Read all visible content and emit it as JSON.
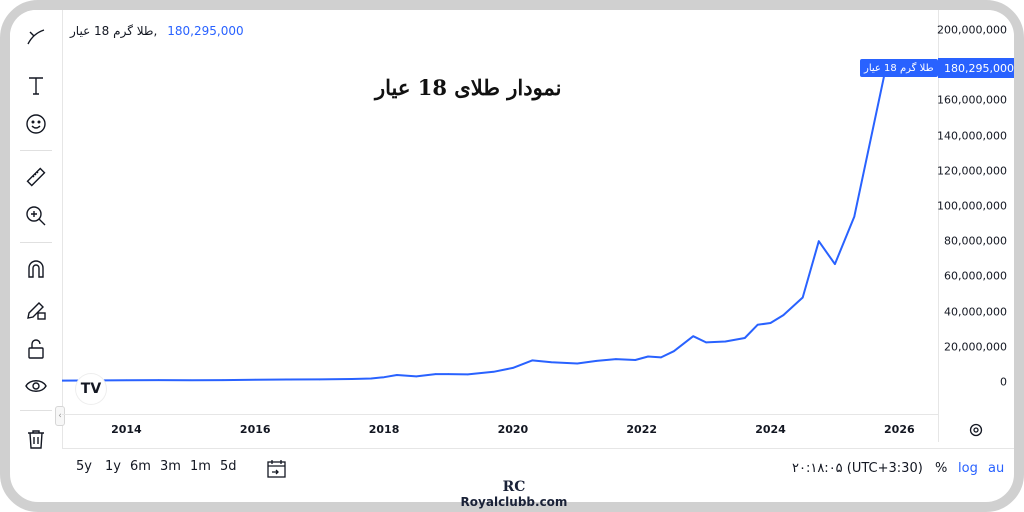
{
  "title": "نمودار طلای 18 عیار",
  "legend": {
    "name": "طلا گرم 18 عیار",
    "sep": ",",
    "value": "180,295,000"
  },
  "price_tag": {
    "name": "طلا گرم 18 عیار",
    "value": "180,295,000"
  },
  "bottom": {
    "ranges": [
      "5y",
      "1y",
      "6m",
      "3m",
      "1m",
      "5d"
    ],
    "time": "۲۰:۱۸:۰۵ (UTC+3:30)",
    "percent": "%",
    "log": "log",
    "auto": "au"
  },
  "tv_logo": "TV",
  "watermark": {
    "logo": "RC",
    "site": "Royalclubb.com"
  },
  "colors": {
    "line": "#2962ff",
    "tag": "#2962ff"
  },
  "icons": [
    "brush-icon",
    "text-icon",
    "emoji-icon",
    "ruler-icon",
    "zoom-icon",
    "magnet-icon",
    "pencil-lock-icon",
    "lock-icon",
    "eye-icon",
    "trash-icon"
  ],
  "chart_data": {
    "type": "line",
    "x_ticks": [
      "2014",
      "2016",
      "2018",
      "2020",
      "2022",
      "2024",
      "2026"
    ],
    "y_ticks": [
      "200,000,000",
      "180,000,000",
      "160,000,000",
      "140,000,000",
      "120,000,000",
      "100,000,000",
      "80,000,000",
      "60,000,000",
      "40,000,000",
      "20,000,000",
      "0"
    ],
    "ylim": [
      0,
      200000000
    ],
    "xlim": [
      2013.0,
      2026.6
    ],
    "series": [
      {
        "name": "طلا گرم 18 عیار",
        "x": [
          2013.0,
          2014.0,
          2014.5,
          2015.0,
          2015.5,
          2016.0,
          2016.5,
          2017.0,
          2017.5,
          2017.8,
          2018.0,
          2018.2,
          2018.5,
          2018.8,
          2019.0,
          2019.3,
          2019.7,
          2020.0,
          2020.3,
          2020.6,
          2021.0,
          2021.3,
          2021.6,
          2021.9,
          2022.1,
          2022.3,
          2022.5,
          2022.8,
          2023.0,
          2023.3,
          2023.6,
          2023.8,
          2024.0,
          2024.2,
          2024.5,
          2024.75,
          2025.0,
          2025.3,
          2025.8
        ],
        "y": [
          800000,
          1000000,
          1100000,
          1000000,
          1100000,
          1300000,
          1400000,
          1500000,
          1700000,
          2000000,
          2700000,
          4000000,
          3200000,
          4500000,
          4500000,
          4300000,
          5800000,
          8000000,
          12300000,
          11200000,
          10500000,
          12000000,
          13000000,
          12500000,
          14500000,
          14000000,
          17500000,
          26000000,
          22500000,
          23000000,
          25000000,
          32500000,
          33500000,
          38000000,
          48000000,
          80000000,
          67000000,
          94000000,
          180295000
        ]
      }
    ]
  }
}
